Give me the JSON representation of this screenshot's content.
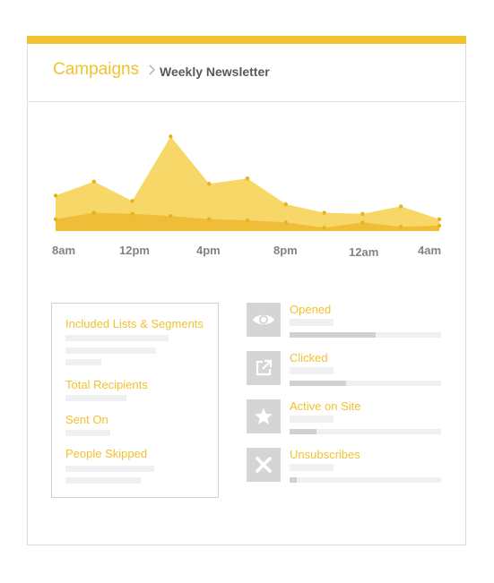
{
  "header": {
    "breadcrumb_root": "Campaigns",
    "breadcrumb_current": "Weekly Newsletter"
  },
  "colors": {
    "accent": "#f2c12e",
    "area_upper": "#f6d767",
    "area_lower": "#efbd38"
  },
  "chart_data": {
    "type": "area",
    "x_tick_labels": [
      "8am",
      "12pm",
      "4pm",
      "8pm",
      "12am",
      "4am"
    ],
    "series": [
      {
        "values": [
          0.33,
          0.46,
          0.28,
          0.88,
          0.44,
          0.49,
          0.25,
          0.17,
          0.16,
          0.23,
          0.11
        ]
      },
      {
        "values": [
          0.11,
          0.17,
          0.16,
          0.14,
          0.11,
          0.1,
          0.08,
          0.03,
          0.08,
          0.04,
          0.05
        ]
      }
    ]
  },
  "info_panel": {
    "labels": [
      "Included Lists & Segments",
      "Total Recipients",
      "Sent On",
      "People Skipped"
    ]
  },
  "stats": [
    {
      "label": "Opened",
      "icon": "eye-icon",
      "progress": 0.57
    },
    {
      "label": "Clicked",
      "icon": "external-link-icon",
      "progress": 0.37
    },
    {
      "label": "Active on Site",
      "icon": "star-icon",
      "progress": 0.18
    },
    {
      "label": "Unsubscribes",
      "icon": "close-icon",
      "progress": 0.05
    }
  ]
}
